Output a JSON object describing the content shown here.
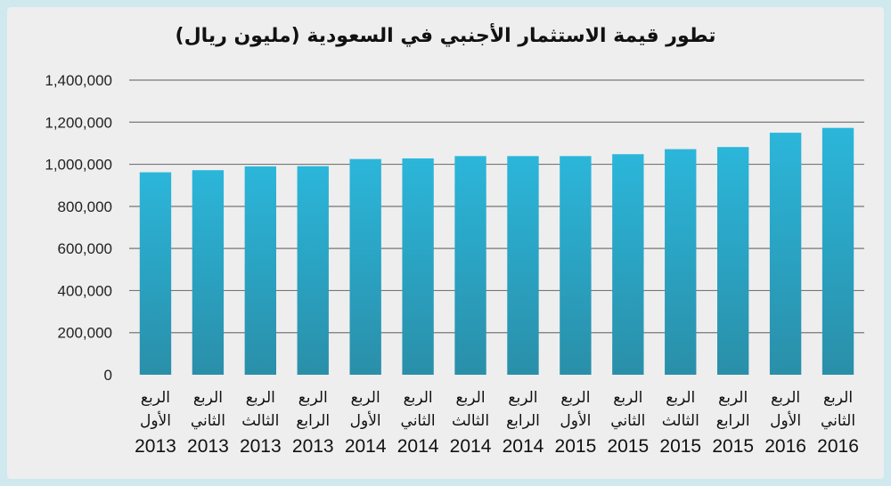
{
  "chart_data": {
    "type": "bar",
    "title": "تطور قيمة الاستثمار الأجنبي في السعودية (مليون ريال)",
    "xlabel": "",
    "ylabel": "",
    "ylim": [
      0,
      1400000
    ],
    "yticks": [
      "0",
      "200,000",
      "400,000",
      "600,000",
      "800,000",
      "1,000,000",
      "1,200,000",
      "1,400,000"
    ],
    "grid": true,
    "bar_color": "#2bb3d6",
    "categories": [
      {
        "q": "الربع",
        "n": "الأول",
        "y": "2013"
      },
      {
        "q": "الربع",
        "n": "الثاني",
        "y": "2013"
      },
      {
        "q": "الربع",
        "n": "الثالث",
        "y": "2013"
      },
      {
        "q": "الربع",
        "n": "الرابع",
        "y": "2013"
      },
      {
        "q": "الربع",
        "n": "الأول",
        "y": "2014"
      },
      {
        "q": "الربع",
        "n": "الثاني",
        "y": "2014"
      },
      {
        "q": "الربع",
        "n": "الثالث",
        "y": "2014"
      },
      {
        "q": "الربع",
        "n": "الرابع",
        "y": "2014"
      },
      {
        "q": "الربع",
        "n": "الأول",
        "y": "2015"
      },
      {
        "q": "الربع",
        "n": "الثاني",
        "y": "2015"
      },
      {
        "q": "الربع",
        "n": "الثالث",
        "y": "2015"
      },
      {
        "q": "الربع",
        "n": "الرابع",
        "y": "2015"
      },
      {
        "q": "الربع",
        "n": "الأول",
        "y": "2016"
      },
      {
        "q": "الربع",
        "n": "الثاني",
        "y": "2016"
      }
    ],
    "values": [
      962000,
      972000,
      990000,
      991000,
      1025000,
      1028000,
      1039000,
      1039000,
      1039000,
      1048000,
      1072000,
      1082000,
      1150000,
      1173000
    ]
  }
}
